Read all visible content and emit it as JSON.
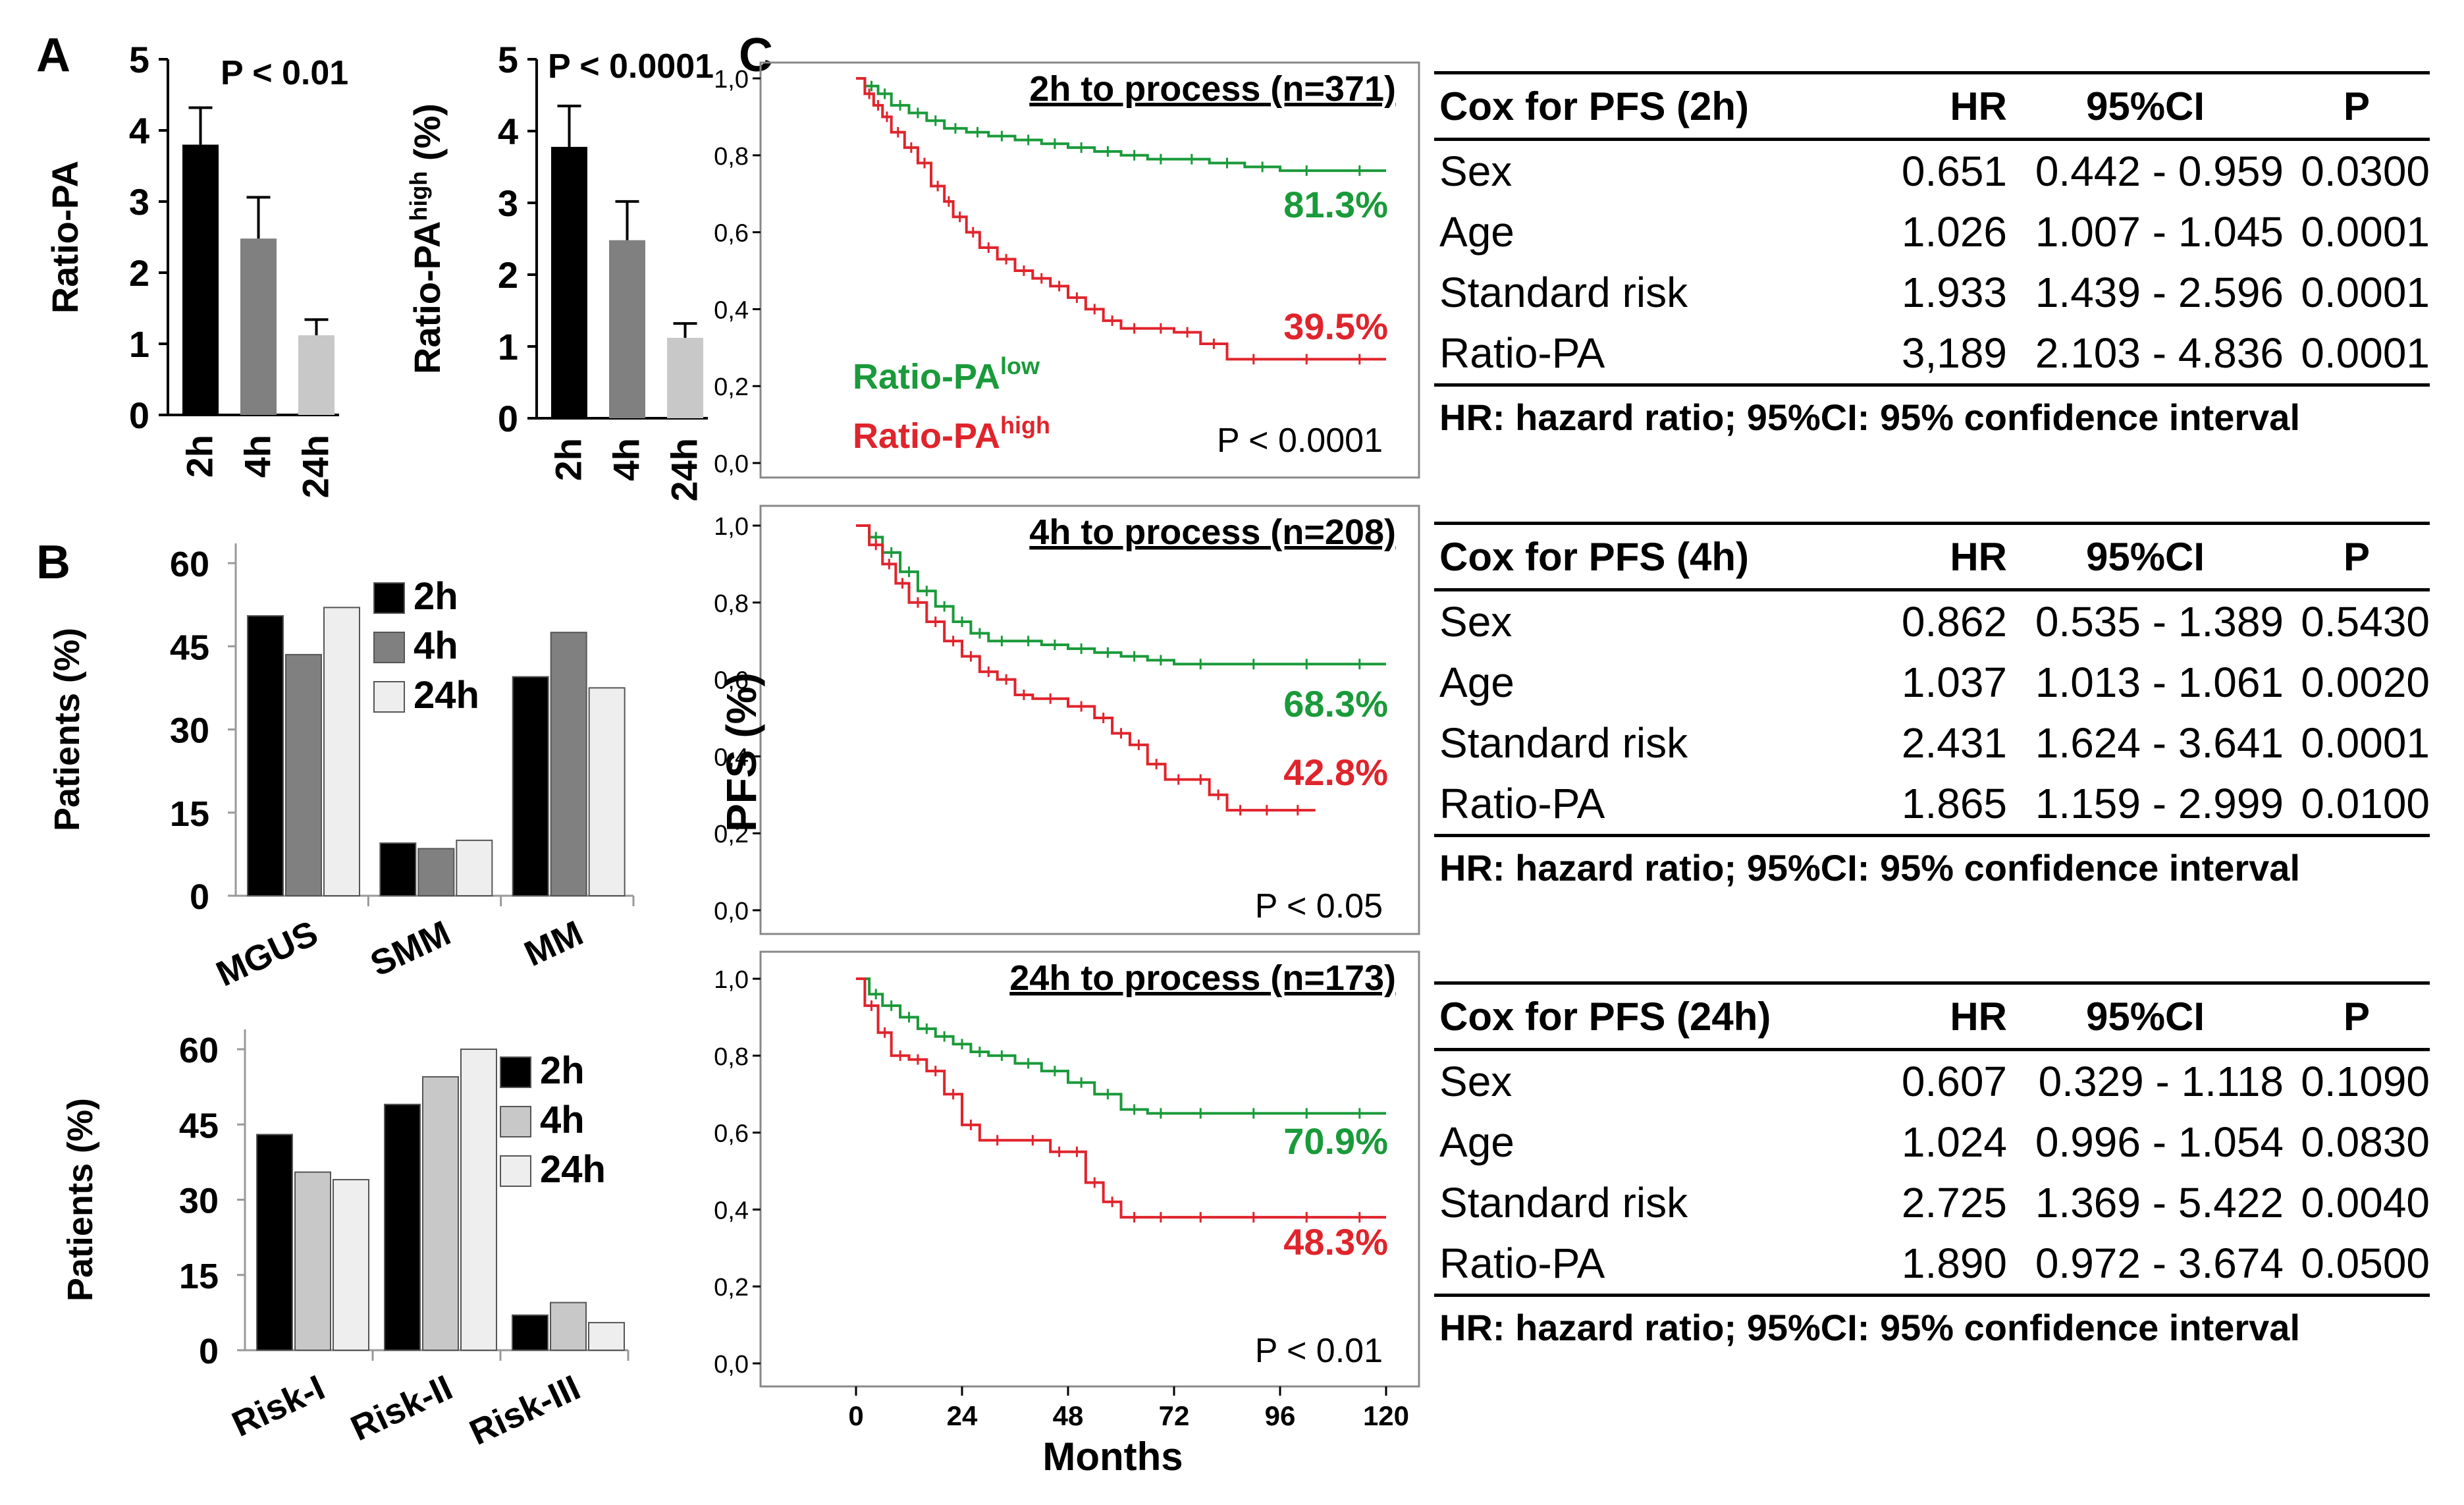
{
  "figure": {
    "panel_labels": {
      "a": "A",
      "b": "B",
      "c": "C"
    },
    "colors": {
      "green": "#1a9a3a",
      "red": "#e0242c",
      "black": "#000000",
      "grey_dark": "#808080",
      "grey_light": "#c8c8c8",
      "grey_pale": "#eeeeee"
    }
  },
  "chart_data": [
    {
      "id": "A1",
      "type": "bar",
      "title": "P < 0.01",
      "ylabel": "Ratio-PA",
      "categories": [
        "2h",
        "4h",
        "24h"
      ],
      "values": [
        3.8,
        2.48,
        1.12
      ],
      "errors": [
        0.52,
        0.58,
        0.22
      ],
      "ylim": [
        0,
        5
      ],
      "yticks": [
        "0",
        "1",
        "2",
        "3",
        "4",
        "5"
      ]
    },
    {
      "id": "A2",
      "type": "bar",
      "title": "P < 0.0001",
      "ylabel": "Ratio-PA",
      "ylabel_sup": "high",
      "ylabel_suffix": " (%)",
      "categories": [
        "2h",
        "4h",
        "24h"
      ],
      "values": [
        3.78,
        2.48,
        1.12
      ],
      "errors": [
        0.57,
        0.54,
        0.2
      ],
      "ylim": [
        0,
        5
      ],
      "yticks": [
        "0",
        "1",
        "2",
        "3",
        "4",
        "5"
      ]
    },
    {
      "id": "B1",
      "type": "bar",
      "ylabel": "Patients (%)",
      "categories": [
        "MGUS",
        "SMM",
        "MM"
      ],
      "series": [
        {
          "name": "2h",
          "values": [
            50.5,
            9.5,
            39.5
          ]
        },
        {
          "name": "4h",
          "values": [
            43.5,
            8.5,
            47.5
          ]
        },
        {
          "name": "24h",
          "values": [
            52,
            10,
            37.5
          ]
        }
      ],
      "ylim": [
        0,
        60
      ],
      "yticks": [
        "0",
        "15",
        "30",
        "45",
        "60"
      ]
    },
    {
      "id": "B2",
      "type": "bar",
      "ylabel": "Patients (%)",
      "categories": [
        "Risk-I",
        "Risk-II",
        "Risk-III"
      ],
      "series": [
        {
          "name": "2h",
          "values": [
            43,
            49,
            7
          ]
        },
        {
          "name": "4h",
          "values": [
            35.5,
            54.5,
            9.5
          ]
        },
        {
          "name": "24h",
          "values": [
            34,
            60,
            5.5
          ]
        }
      ],
      "ylim": [
        0,
        60
      ],
      "yticks": [
        "0",
        "15",
        "30",
        "45",
        "60"
      ]
    },
    {
      "id": "C1",
      "type": "line",
      "title": "2h to process  (n=371)",
      "ylabel": "PFS (%)",
      "xlabel": "Months",
      "xlim": [
        0,
        120
      ],
      "ylim": [
        0,
        1
      ],
      "yticks": [
        "0,0",
        "0,2",
        "0,4",
        "0,6",
        "0,8",
        "1,0"
      ],
      "xticks": [
        "0",
        "24",
        "48",
        "72",
        "96",
        "120"
      ],
      "series": [
        {
          "name": "Ratio-PAlow",
          "color": "green",
          "label": "81.3%",
          "x": [
            0,
            2,
            5,
            8,
            12,
            16,
            20,
            25,
            30,
            36,
            42,
            48,
            54,
            60,
            66,
            72,
            80,
            88,
            96,
            108,
            120
          ],
          "y": [
            1.0,
            0.98,
            0.96,
            0.93,
            0.91,
            0.89,
            0.87,
            0.86,
            0.85,
            0.84,
            0.83,
            0.82,
            0.81,
            0.8,
            0.79,
            0.79,
            0.78,
            0.77,
            0.76,
            0.76,
            0.76
          ]
        },
        {
          "name": "Ratio-PAhigh",
          "color": "red",
          "label": "39.5%",
          "x": [
            0,
            2,
            4,
            6,
            8,
            11,
            14,
            17,
            20,
            22,
            25,
            28,
            32,
            36,
            40,
            44,
            48,
            52,
            56,
            60,
            66,
            72,
            78,
            84,
            96,
            108,
            120
          ],
          "y": [
            1.0,
            0.96,
            0.93,
            0.9,
            0.86,
            0.82,
            0.78,
            0.72,
            0.68,
            0.64,
            0.6,
            0.56,
            0.53,
            0.5,
            0.48,
            0.46,
            0.43,
            0.4,
            0.37,
            0.35,
            0.35,
            0.34,
            0.31,
            0.27,
            0.27,
            0.27,
            0.27
          ]
        }
      ],
      "legend": [
        {
          "text": "Ratio-PA",
          "sup": "low",
          "color": "green"
        },
        {
          "text": "Ratio-PA",
          "sup": "high",
          "color": "red"
        }
      ],
      "pvalue": "P < 0.0001"
    },
    {
      "id": "C2",
      "type": "line",
      "title": "4h to process  (n=208)",
      "ylabel": "PFS (%)",
      "xlabel": "Months",
      "xlim": [
        0,
        120
      ],
      "ylim": [
        0,
        1
      ],
      "yticks": [
        "0,0",
        "0,2",
        "0,4",
        "0,6",
        "0,8",
        "1,0"
      ],
      "xticks": [
        "0",
        "24",
        "48",
        "72",
        "96",
        "120"
      ],
      "series": [
        {
          "name": "Ratio-PAlow",
          "color": "green",
          "label": "68.3%",
          "x": [
            0,
            3,
            6,
            10,
            14,
            18,
            22,
            26,
            30,
            36,
            42,
            48,
            54,
            60,
            66,
            72,
            84,
            96,
            108,
            120
          ],
          "y": [
            1.0,
            0.97,
            0.93,
            0.88,
            0.83,
            0.79,
            0.75,
            0.72,
            0.7,
            0.7,
            0.69,
            0.68,
            0.67,
            0.66,
            0.65,
            0.64,
            0.64,
            0.64,
            0.64,
            0.64
          ]
        },
        {
          "name": "Ratio-PAhigh",
          "color": "red",
          "label": "42.8%",
          "x": [
            0,
            3,
            6,
            9,
            12,
            16,
            20,
            24,
            28,
            32,
            36,
            40,
            48,
            54,
            58,
            62,
            66,
            70,
            76,
            80,
            84,
            90,
            96,
            104
          ],
          "y": [
            1.0,
            0.95,
            0.9,
            0.85,
            0.8,
            0.75,
            0.7,
            0.66,
            0.62,
            0.6,
            0.56,
            0.55,
            0.53,
            0.5,
            0.46,
            0.43,
            0.38,
            0.34,
            0.34,
            0.3,
            0.26,
            0.26,
            0.26,
            0.26
          ]
        }
      ],
      "pvalue": "P < 0.05"
    },
    {
      "id": "C3",
      "type": "line",
      "title": "24h to process  (n=173)",
      "ylabel": "PFS (%)",
      "xlabel": "Months",
      "xlim": [
        0,
        120
      ],
      "ylim": [
        0,
        1
      ],
      "yticks": [
        "0,0",
        "0,2",
        "0,4",
        "0,6",
        "0,8",
        "1,0"
      ],
      "xticks": [
        "0",
        "24",
        "48",
        "72",
        "96",
        "120"
      ],
      "series": [
        {
          "name": "Ratio-PAlow",
          "color": "green",
          "label": "70.9%",
          "x": [
            0,
            3,
            6,
            10,
            14,
            18,
            22,
            26,
            30,
            36,
            42,
            48,
            54,
            60,
            66,
            72,
            84,
            96,
            108,
            120
          ],
          "y": [
            1.0,
            0.96,
            0.93,
            0.9,
            0.87,
            0.85,
            0.83,
            0.81,
            0.8,
            0.78,
            0.76,
            0.73,
            0.7,
            0.66,
            0.65,
            0.65,
            0.65,
            0.65,
            0.65,
            0.65
          ]
        },
        {
          "name": "Ratio-PAhigh",
          "color": "red",
          "label": "48.3%",
          "x": [
            0,
            2,
            5,
            8,
            12,
            16,
            20,
            24,
            28,
            36,
            44,
            48,
            52,
            56,
            60,
            66,
            72,
            84,
            96,
            108,
            120
          ],
          "y": [
            1.0,
            0.93,
            0.86,
            0.8,
            0.79,
            0.76,
            0.7,
            0.62,
            0.58,
            0.58,
            0.55,
            0.55,
            0.47,
            0.42,
            0.38,
            0.38,
            0.38,
            0.38,
            0.38,
            0.38,
            0.38
          ]
        }
      ],
      "pvalue": "P < 0.01"
    }
  ],
  "tables": [
    {
      "header": [
        "Cox for PFS (2h)",
        "HR",
        "95%CI",
        "P"
      ],
      "rows": [
        [
          "Sex",
          "0.651",
          "0.442 - 0.959",
          "0.0300"
        ],
        [
          "Age",
          "1.026",
          "1.007 - 1.045",
          "0.0001"
        ],
        [
          "Standard risk",
          "1.933",
          "1.439 - 2.596",
          "0.0001"
        ],
        [
          "Ratio-PA",
          "3,189",
          "2.103 - 4.836",
          "0.0001"
        ]
      ],
      "footnote": "HR: hazard ratio; 95%CI: 95% confidence interval"
    },
    {
      "header": [
        "Cox for PFS (4h)",
        "HR",
        "95%CI",
        "P"
      ],
      "rows": [
        [
          "Sex",
          "0.862",
          "0.535 - 1.389",
          "0.5430"
        ],
        [
          "Age",
          "1.037",
          "1.013 - 1.061",
          "0.0020"
        ],
        [
          "Standard risk",
          "2.431",
          "1.624 - 3.641",
          "0.0001"
        ],
        [
          "Ratio-PA",
          "1.865",
          "1.159 - 2.999",
          "0.0100"
        ]
      ],
      "footnote": "HR: hazard ratio; 95%CI: 95% confidence interval"
    },
    {
      "header": [
        "Cox for PFS (24h)",
        "HR",
        "95%CI",
        "P"
      ],
      "rows": [
        [
          "Sex",
          "0.607",
          "0.329 - 1.118",
          "0.1090"
        ],
        [
          "Age",
          "1.024",
          "0.996 - 1.054",
          "0.0830"
        ],
        [
          "Standard risk",
          "2.725",
          "1.369 - 5.422",
          "0.0040"
        ],
        [
          "Ratio-PA",
          "1.890",
          "0.972 - 3.674",
          "0.0500"
        ]
      ],
      "footnote": "HR: hazard ratio; 95%CI: 95% confidence interval"
    }
  ]
}
